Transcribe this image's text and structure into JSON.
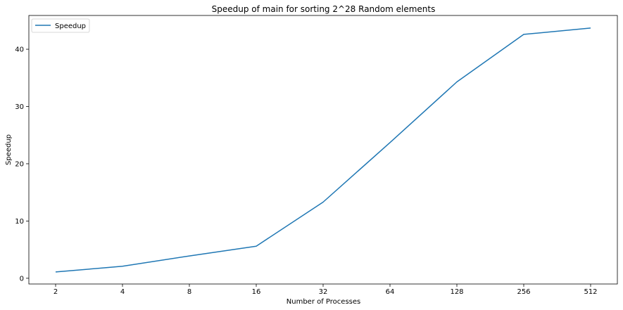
{
  "chart_data": {
    "type": "line",
    "title": "Speedup of main for sorting 2^28 Random elements",
    "xlabel": "Number of Processes",
    "ylabel": "Speedup",
    "categories": [
      "2",
      "4",
      "8",
      "16",
      "32",
      "64",
      "128",
      "256",
      "512"
    ],
    "series": [
      {
        "name": "Speedup",
        "color": "#1f77b4",
        "values": [
          1.1,
          2.1,
          3.9,
          5.6,
          13.3,
          23.7,
          34.3,
          42.6,
          43.7
        ]
      }
    ],
    "ylim": [
      -1.0,
      45.9
    ],
    "yticks": [
      0,
      10,
      20,
      30,
      40
    ],
    "grid": false,
    "legend_position": "top-left"
  }
}
